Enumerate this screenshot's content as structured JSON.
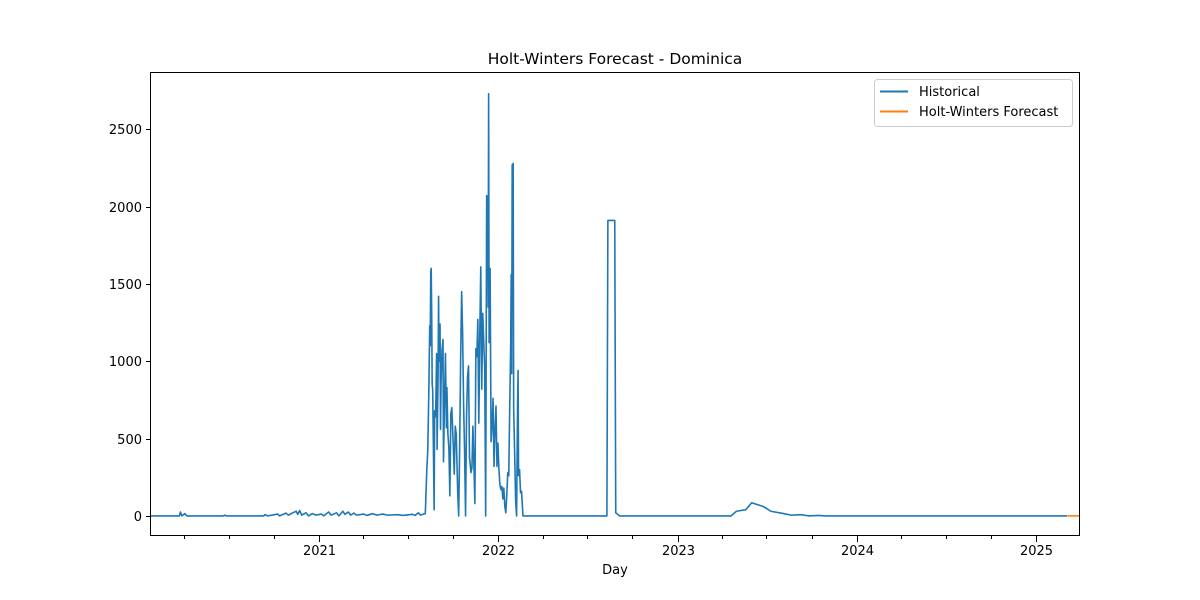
{
  "chart_data": {
    "type": "line",
    "title": "Holt-Winters Forecast - Dominica",
    "xlabel": "Day",
    "ylabel": "",
    "x_range": [
      "2020-01-22",
      "2025-03-31"
    ],
    "ylim": [
      -130,
      2870
    ],
    "x_ticks": [
      {
        "date": "2021-01-01",
        "label": "2021"
      },
      {
        "date": "2022-01-01",
        "label": "2022"
      },
      {
        "date": "2023-01-01",
        "label": "2023"
      },
      {
        "date": "2024-01-01",
        "label": "2024"
      },
      {
        "date": "2025-01-01",
        "label": "2025"
      }
    ],
    "y_ticks": [
      0,
      500,
      1000,
      1500,
      2000,
      2500
    ],
    "grid": false,
    "legend_position": "top-right",
    "series": [
      {
        "name": "Historical",
        "color": "#1f77b4",
        "points": [
          [
            "2020-01-22",
            0
          ],
          [
            "2020-03-22",
            0
          ],
          [
            "2020-03-24",
            25
          ],
          [
            "2020-03-27",
            0
          ],
          [
            "2020-04-02",
            15
          ],
          [
            "2020-04-06",
            0
          ],
          [
            "2020-06-20",
            0
          ],
          [
            "2020-06-22",
            5
          ],
          [
            "2020-06-25",
            0
          ],
          [
            "2020-09-10",
            0
          ],
          [
            "2020-09-12",
            8
          ],
          [
            "2020-09-18",
            0
          ],
          [
            "2020-10-08",
            12
          ],
          [
            "2020-10-12",
            0
          ],
          [
            "2020-10-25",
            18
          ],
          [
            "2020-10-30",
            5
          ],
          [
            "2020-11-08",
            20
          ],
          [
            "2020-11-15",
            30
          ],
          [
            "2020-11-18",
            10
          ],
          [
            "2020-11-22",
            35
          ],
          [
            "2020-11-26",
            5
          ],
          [
            "2020-12-05",
            20
          ],
          [
            "2020-12-10",
            0
          ],
          [
            "2020-12-18",
            15
          ],
          [
            "2020-12-25",
            5
          ],
          [
            "2021-01-05",
            12
          ],
          [
            "2021-01-10",
            0
          ],
          [
            "2021-01-20",
            25
          ],
          [
            "2021-01-25",
            5
          ],
          [
            "2021-02-05",
            20
          ],
          [
            "2021-02-10",
            0
          ],
          [
            "2021-02-18",
            30
          ],
          [
            "2021-02-22",
            10
          ],
          [
            "2021-03-01",
            25
          ],
          [
            "2021-03-06",
            5
          ],
          [
            "2021-03-12",
            18
          ],
          [
            "2021-03-18",
            5
          ],
          [
            "2021-04-01",
            12
          ],
          [
            "2021-04-08",
            3
          ],
          [
            "2021-04-20",
            15
          ],
          [
            "2021-04-28",
            5
          ],
          [
            "2021-05-10",
            12
          ],
          [
            "2021-05-20",
            5
          ],
          [
            "2021-06-10",
            8
          ],
          [
            "2021-06-20",
            3
          ],
          [
            "2021-07-10",
            10
          ],
          [
            "2021-07-15",
            3
          ],
          [
            "2021-07-22",
            20
          ],
          [
            "2021-07-26",
            5
          ],
          [
            "2021-08-05",
            15
          ],
          [
            "2021-08-08",
            300
          ],
          [
            "2021-08-10",
            420
          ],
          [
            "2021-08-12",
            780
          ],
          [
            "2021-08-14",
            1230
          ],
          [
            "2021-08-15",
            1100
          ],
          [
            "2021-08-16",
            1580
          ],
          [
            "2021-08-17",
            1600
          ],
          [
            "2021-08-18",
            1300
          ],
          [
            "2021-08-19",
            850
          ],
          [
            "2021-08-20",
            820
          ],
          [
            "2021-08-22",
            300
          ],
          [
            "2021-08-23",
            40
          ],
          [
            "2021-08-24",
            680
          ],
          [
            "2021-08-26",
            640
          ],
          [
            "2021-08-28",
            1050
          ],
          [
            "2021-08-29",
            430
          ],
          [
            "2021-08-31",
            900
          ],
          [
            "2021-09-01",
            1420
          ],
          [
            "2021-09-02",
            1000
          ],
          [
            "2021-09-04",
            1240
          ],
          [
            "2021-09-05",
            560
          ],
          [
            "2021-09-06",
            850
          ],
          [
            "2021-09-08",
            1070
          ],
          [
            "2021-09-10",
            1140
          ],
          [
            "2021-09-11",
            350
          ],
          [
            "2021-09-13",
            720
          ],
          [
            "2021-09-15",
            1050
          ],
          [
            "2021-09-17",
            570
          ],
          [
            "2021-09-18",
            830
          ],
          [
            "2021-09-20",
            530
          ],
          [
            "2021-09-22",
            440
          ],
          [
            "2021-09-24",
            130
          ],
          [
            "2021-09-26",
            660
          ],
          [
            "2021-09-28",
            700
          ],
          [
            "2021-10-01",
            450
          ],
          [
            "2021-10-03",
            270
          ],
          [
            "2021-10-05",
            580
          ],
          [
            "2021-10-07",
            530
          ],
          [
            "2021-10-10",
            150
          ],
          [
            "2021-10-12",
            0
          ],
          [
            "2021-10-14",
            450
          ],
          [
            "2021-10-16",
            1020
          ],
          [
            "2021-10-18",
            1450
          ],
          [
            "2021-10-20",
            1180
          ],
          [
            "2021-10-22",
            720
          ],
          [
            "2021-10-24",
            420
          ],
          [
            "2021-10-26",
            0
          ],
          [
            "2021-10-28",
            650
          ],
          [
            "2021-10-30",
            900
          ],
          [
            "2021-11-01",
            970
          ],
          [
            "2021-11-03",
            380
          ],
          [
            "2021-11-06",
            280
          ],
          [
            "2021-11-08",
            310
          ],
          [
            "2021-11-10",
            580
          ],
          [
            "2021-11-12",
            330
          ],
          [
            "2021-11-14",
            80
          ],
          [
            "2021-11-16",
            1080
          ],
          [
            "2021-11-18",
            1030
          ],
          [
            "2021-11-20",
            1270
          ],
          [
            "2021-11-22",
            600
          ],
          [
            "2021-11-24",
            1180
          ],
          [
            "2021-11-26",
            1610
          ],
          [
            "2021-11-28",
            820
          ],
          [
            "2021-11-30",
            1310
          ],
          [
            "2021-12-02",
            1130
          ],
          [
            "2021-12-04",
            960
          ],
          [
            "2021-12-06",
            0
          ],
          [
            "2021-12-08",
            2070
          ],
          [
            "2021-12-10",
            2060
          ],
          [
            "2021-12-11",
            1350
          ],
          [
            "2021-12-12",
            2730
          ],
          [
            "2021-12-13",
            1120
          ],
          [
            "2021-12-14",
            1150
          ],
          [
            "2021-12-15",
            1600
          ],
          [
            "2021-12-17",
            480
          ],
          [
            "2021-12-19",
            580
          ],
          [
            "2021-12-21",
            760
          ],
          [
            "2021-12-23",
            320
          ],
          [
            "2021-12-25",
            560
          ],
          [
            "2021-12-27",
            710
          ],
          [
            "2021-12-29",
            320
          ],
          [
            "2021-12-31",
            470
          ],
          [
            "2022-01-02",
            300
          ],
          [
            "2022-01-04",
            200
          ],
          [
            "2022-01-06",
            170
          ],
          [
            "2022-01-08",
            190
          ],
          [
            "2022-01-10",
            110
          ],
          [
            "2022-01-12",
            180
          ],
          [
            "2022-01-14",
            60
          ],
          [
            "2022-01-16",
            20
          ],
          [
            "2022-01-18",
            140
          ],
          [
            "2022-01-20",
            280
          ],
          [
            "2022-01-22",
            260
          ],
          [
            "2022-01-24",
            700
          ],
          [
            "2022-01-26",
            1120
          ],
          [
            "2022-01-27",
            1560
          ],
          [
            "2022-01-28",
            920
          ],
          [
            "2022-01-29",
            2270
          ],
          [
            "2022-01-30",
            1350
          ],
          [
            "2022-01-31",
            2280
          ],
          [
            "2022-02-01",
            700
          ],
          [
            "2022-02-03",
            410
          ],
          [
            "2022-02-05",
            100
          ],
          [
            "2022-02-07",
            0
          ],
          [
            "2022-02-09",
            720
          ],
          [
            "2022-02-10",
            940
          ],
          [
            "2022-02-11",
            260
          ],
          [
            "2022-02-13",
            300
          ],
          [
            "2022-02-15",
            150
          ],
          [
            "2022-02-17",
            160
          ],
          [
            "2022-02-20",
            0
          ],
          [
            "2022-03-15",
            0
          ],
          [
            "2022-08-10",
            0
          ],
          [
            "2022-08-12",
            1910
          ],
          [
            "2022-08-26",
            1910
          ],
          [
            "2022-08-28",
            20
          ],
          [
            "2022-09-05",
            0
          ],
          [
            "2023-04-20",
            0
          ],
          [
            "2023-05-01",
            30
          ],
          [
            "2023-05-20",
            40
          ],
          [
            "2023-06-01",
            85
          ],
          [
            "2023-06-25",
            60
          ],
          [
            "2023-07-10",
            30
          ],
          [
            "2023-08-05",
            15
          ],
          [
            "2023-08-20",
            5
          ],
          [
            "2023-09-10",
            8
          ],
          [
            "2023-09-25",
            0
          ],
          [
            "2023-10-15",
            3
          ],
          [
            "2023-10-30",
            0
          ],
          [
            "2025-03-05",
            0
          ]
        ]
      },
      {
        "name": "Holt-Winters Forecast",
        "color": "#ff7f0e",
        "points": [
          [
            "2025-03-06",
            0
          ],
          [
            "2025-03-31",
            0
          ]
        ]
      }
    ]
  }
}
